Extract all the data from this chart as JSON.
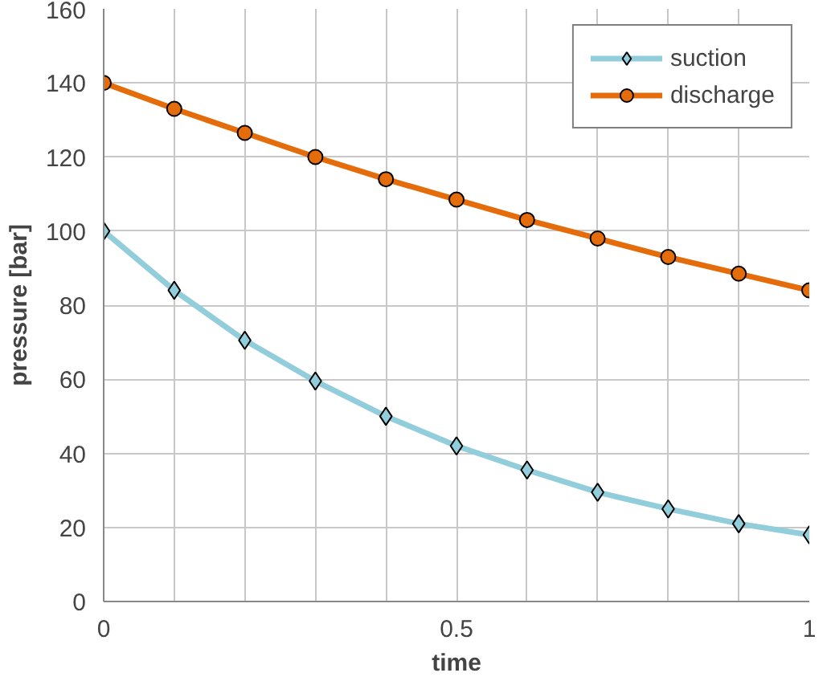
{
  "chart_data": {
    "type": "line",
    "xlabel": "time",
    "ylabel": "pressure [bar]",
    "x": [
      0,
      0.1,
      0.2,
      0.3,
      0.4,
      0.5,
      0.6,
      0.7,
      0.8,
      0.9,
      1
    ],
    "series": [
      {
        "name": "suction",
        "color": "#92cddc",
        "marker": "diamond",
        "values": [
          100,
          84,
          70.5,
          59.5,
          50,
          42,
          35.5,
          29.5,
          25,
          21,
          18
        ]
      },
      {
        "name": "discharge",
        "color": "#e46c0a",
        "marker": "circle",
        "values": [
          140,
          133,
          126.5,
          120,
          114,
          108.5,
          103,
          98,
          93,
          88.5,
          84
        ]
      }
    ],
    "xlim": [
      0,
      1
    ],
    "ylim": [
      0,
      160
    ],
    "xticks": [
      0,
      {
        "value": 0.1,
        "label": null
      },
      {
        "value": 0.2,
        "label": null
      },
      {
        "value": 0.3,
        "label": null
      },
      {
        "value": 0.4,
        "label": null
      },
      0.5,
      {
        "value": 0.6,
        "label": null
      },
      {
        "value": 0.7,
        "label": null
      },
      {
        "value": 0.8,
        "label": null
      },
      {
        "value": 0.9,
        "label": null
      },
      1
    ],
    "yticks": [
      0,
      20,
      40,
      60,
      80,
      100,
      120,
      140,
      160
    ],
    "grid": true,
    "legend": "top right",
    "line_style": "solid"
  }
}
